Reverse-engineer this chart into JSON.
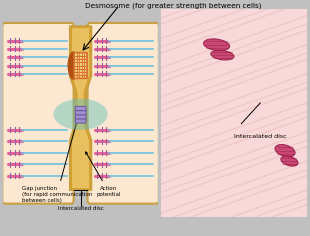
{
  "bg_color": "#c0c0c0",
  "title": "Desmosome (for greater strength between cells)",
  "title_fontsize": 6,
  "cell_bg": "#fce8d0",
  "cell_border": "#c8a040",
  "intercalated_disc_label": "Intercalated disc",
  "gap_junction_label": "Gap junction\n(for rapid communication\nbetween cells)",
  "action_potential_label": "Action\npotential",
  "intercalated_disc_bottom_label": "Intercalated disc",
  "pink_color": "#e8609a",
  "blue_color": "#70c0e0",
  "desmosome_brown": "#b05010",
  "desmosome_orange": "#d87030",
  "gap_junction_color": "#a090d0",
  "teal_color": "#60c0b8",
  "membrane_color": "#d4a030",
  "membrane_light": "#e8c060"
}
